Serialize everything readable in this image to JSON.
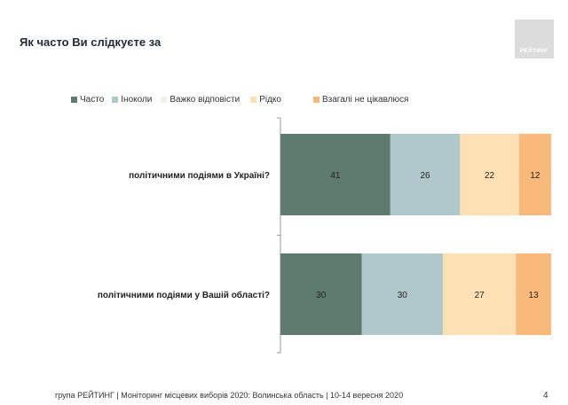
{
  "title": "Як часто Ви слідкуєте за",
  "logo_text": "РЕЙТИНГ",
  "footer": "група РЕЙТИНГ | Моніторинг місцевих виборів 2020: Волинська область | 10-14 вересня 2020",
  "page_number": "4",
  "colors": {
    "often": "#5f7b70",
    "sometimes": "#b0c8cb",
    "hard_to_say": "#f2f2ec",
    "rarely": "#fde0b4",
    "not_interested": "#f8b97a"
  },
  "chart_data": {
    "type": "bar",
    "orientation": "horizontal",
    "stacked": true,
    "legend_position": "top",
    "categories": [
      "політичними подіями в Україні?",
      "політичними подіями у Вашій області?"
    ],
    "series": [
      {
        "name": "Часто",
        "values": [
          41,
          30
        ],
        "labels": [
          "41",
          "30"
        ]
      },
      {
        "name": "Іноколи",
        "values": [
          26,
          30
        ],
        "labels": [
          "26",
          "30"
        ]
      },
      {
        "name": "Важко відповісти",
        "values": [
          0,
          0
        ],
        "labels": [
          "",
          ""
        ]
      },
      {
        "name": "Рідко",
        "values": [
          22,
          27
        ],
        "labels": [
          "22",
          "27"
        ]
      },
      {
        "name": "Взагалі не цікавлюся",
        "values": [
          12,
          13
        ],
        "labels": [
          "12",
          "13"
        ]
      }
    ]
  }
}
